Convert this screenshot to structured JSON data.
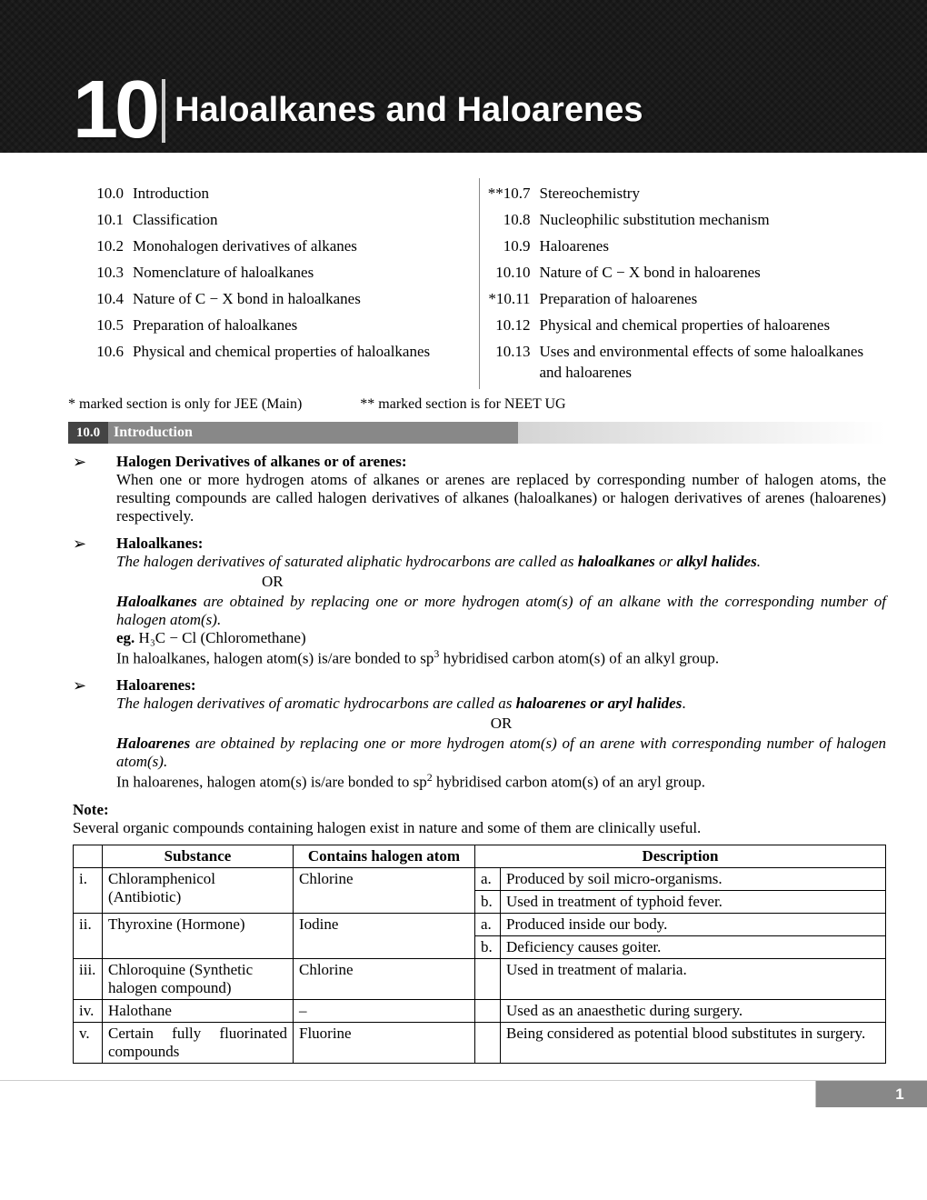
{
  "chapter": {
    "number": "10",
    "title": "Haloalkanes and Haloarenes"
  },
  "toc": {
    "left": [
      {
        "num": "10.0",
        "txt": "Introduction"
      },
      {
        "num": "10.1",
        "txt": "Classification"
      },
      {
        "num": "10.2",
        "txt": "Monohalogen derivatives of alkanes"
      },
      {
        "num": "10.3",
        "txt": "Nomenclature of haloalkanes"
      },
      {
        "num": "10.4",
        "txt": "Nature of C − X bond in haloalkanes"
      },
      {
        "num": "10.5",
        "txt": "Preparation of haloalkanes"
      },
      {
        "num": "10.6",
        "txt": "Physical and chemical properties of haloalkanes",
        "just": true
      }
    ],
    "right": [
      {
        "num": "**10.7",
        "txt": "Stereochemistry"
      },
      {
        "num": "10.8",
        "txt": "Nucleophilic substitution mechanism"
      },
      {
        "num": "10.9",
        "txt": "Haloarenes"
      },
      {
        "num": "10.10",
        "txt": "Nature of C − X bond in haloarenes"
      },
      {
        "num": "*10.11",
        "txt": "Preparation of haloarenes"
      },
      {
        "num": "10.12",
        "txt": "Physical and chemical properties of haloarenes",
        "just": true
      },
      {
        "num": "10.13",
        "txt": "Uses and environmental effects of some haloalkanes and haloarenes"
      }
    ]
  },
  "footnote": {
    "a": "* marked section is only for JEE (Main)",
    "b": "** marked section is for NEET UG"
  },
  "section": {
    "num": "10.0",
    "title": "Introduction"
  },
  "b1": {
    "hd": "Halogen Derivatives of alkanes or of arenes:",
    "p": "When one or more hydrogen atoms of alkanes or arenes are replaced by corresponding number of halogen atoms, the resulting compounds are called halogen derivatives of alkanes (haloalkanes) or halogen derivatives of arenes (haloarenes) respectively."
  },
  "b2": {
    "hd": "Haloalkanes:",
    "i1a": "The halogen derivatives of saturated aliphatic hydrocarbons are called as ",
    "i1b": "haloalkanes",
    "i1c": " or ",
    "i1d": "alkyl halides",
    "i1e": ".",
    "or": "OR",
    "i2a": "Haloalkanes",
    "i2b": " are obtained by replacing one or more hydrogen atom(s) of an alkane with the corresponding number of halogen atom(s).",
    "eg_label": "eg. ",
    "eg": "H₃C − Cl (Chloromethane)",
    "p3a": "In haloalkanes, halogen atom(s) is/are bonded to sp",
    "p3sup": "3",
    "p3b": " hybridised carbon atom(s) of an alkyl group."
  },
  "b3": {
    "hd": "Haloarenes:",
    "i1a": "The halogen derivatives of aromatic hydrocarbons are called as ",
    "i1b": "haloarenes or aryl halides",
    "i1c": ".",
    "or": "OR",
    "i2a": "Haloarenes",
    "i2b": " are obtained by replacing one or more hydrogen atom(s) of an arene with corresponding number of halogen atom(s).",
    "p3a": "In haloarenes, halogen atom(s) is/are bonded to sp",
    "p3sup": "2",
    "p3b": " hybridised carbon atom(s) of an aryl group."
  },
  "note": {
    "hd": "Note:",
    "p": "Several organic compounds containing halogen exist in nature and some of them are clinically useful."
  },
  "table": {
    "h1": "Substance",
    "h2": "Contains halogen atom",
    "h3": "Description",
    "r1": {
      "n": "i.",
      "s": "Chloramphenicol (Antibiotic)",
      "h": "Chlorine",
      "da": "a.",
      "dat": "Produced by soil micro-organisms.",
      "db": "b.",
      "dbt": "Used in treatment of typhoid fever."
    },
    "r2": {
      "n": "ii.",
      "s": "Thyroxine (Hormone)",
      "h": "Iodine",
      "da": "a.",
      "dat": "Produced inside our body.",
      "db": "b.",
      "dbt": "Deficiency causes goiter."
    },
    "r3": {
      "n": "iii.",
      "s": "Chloroquine (Synthetic halogen compound)",
      "h": "Chlorine",
      "d": "Used in treatment of malaria."
    },
    "r4": {
      "n": "iv.",
      "s": "Halothane",
      "h": "–",
      "d": "Used as an anaesthetic during surgery."
    },
    "r5": {
      "n": "v.",
      "s": "Certain fully fluorinated compounds",
      "h": "Fluorine",
      "d": "Being considered as potential blood substitutes in surgery."
    }
  },
  "pagenum": "1"
}
